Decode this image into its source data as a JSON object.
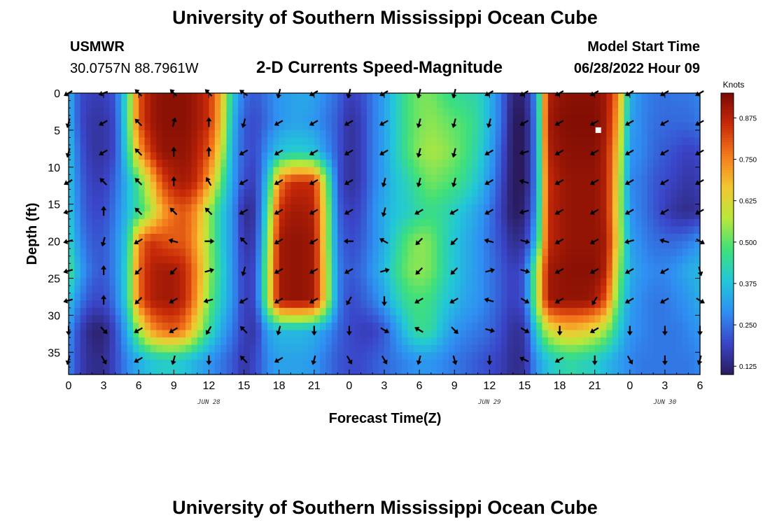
{
  "header": {
    "title": "University of Southern Mississippi Ocean Cube",
    "station": "USMWR",
    "coords": "30.0757N  88.7961W",
    "subtitle": "2-D Currents Speed-Magnitude",
    "model_label": "Model Start Time",
    "model_time": "06/28/2022 Hour 09",
    "bottom_title": "University of Southern Mississippi Ocean Cube"
  },
  "colors": {
    "scale": [
      "#2a1b5e",
      "#3a45c8",
      "#2f8ff2",
      "#22c7d8",
      "#3fe07a",
      "#b9e83a",
      "#f3c632",
      "#f47a1c",
      "#c82a08",
      "#7a0a04"
    ]
  },
  "chart_data": {
    "type": "heatmap",
    "title": "2-D Currents Speed-Magnitude",
    "xlabel": "Forecast Time(Z)",
    "ylabel": "Depth (ft)",
    "x_range_hours": [
      0,
      54
    ],
    "y_range_ft": [
      0,
      38
    ],
    "x_ticks": [
      {
        "h": 0,
        "label": "0"
      },
      {
        "h": 3,
        "label": "3"
      },
      {
        "h": 6,
        "label": "6"
      },
      {
        "h": 9,
        "label": "9"
      },
      {
        "h": 12,
        "label": "12"
      },
      {
        "h": 15,
        "label": "15"
      },
      {
        "h": 18,
        "label": "18"
      },
      {
        "h": 21,
        "label": "21"
      },
      {
        "h": 24,
        "label": "0"
      },
      {
        "h": 27,
        "label": "3"
      },
      {
        "h": 30,
        "label": "6"
      },
      {
        "h": 33,
        "label": "9"
      },
      {
        "h": 36,
        "label": "12"
      },
      {
        "h": 39,
        "label": "15"
      },
      {
        "h": 42,
        "label": "18"
      },
      {
        "h": 45,
        "label": "21"
      },
      {
        "h": 48,
        "label": "0"
      },
      {
        "h": 51,
        "label": "3"
      },
      {
        "h": 54,
        "label": "6"
      }
    ],
    "y_ticks": [
      {
        "v": 0,
        "label": "0"
      },
      {
        "v": 5,
        "label": "5"
      },
      {
        "v": 10,
        "label": "10"
      },
      {
        "v": 15,
        "label": "15"
      },
      {
        "v": 20,
        "label": "20"
      },
      {
        "v": 25,
        "label": "25"
      },
      {
        "v": 30,
        "label": "30"
      },
      {
        "v": 35,
        "label": "35"
      }
    ],
    "date_labels": [
      {
        "h": 12,
        "label": "JUN 28"
      },
      {
        "h": 36,
        "label": "JUN 29"
      },
      {
        "h": 51,
        "label": "JUN 30"
      }
    ],
    "colorbar": {
      "label": "Knots",
      "min": 0.1,
      "max": 0.95,
      "ticks": [
        {
          "v": 0.125,
          "label": "0.125"
        },
        {
          "v": 0.25,
          "label": "0.250"
        },
        {
          "v": 0.375,
          "label": "0.375"
        },
        {
          "v": 0.5,
          "label": "0.500"
        },
        {
          "v": 0.625,
          "label": "0.625"
        },
        {
          "v": 0.75,
          "label": "0.750"
        },
        {
          "v": 0.875,
          "label": "0.875"
        }
      ]
    },
    "speed_hours": [
      0,
      1,
      2,
      3,
      4,
      5,
      6,
      7,
      8,
      9,
      10,
      11,
      12,
      13,
      14,
      15,
      16,
      17,
      18,
      19,
      20,
      21,
      22,
      23,
      24,
      25,
      26,
      27,
      28,
      29,
      30,
      31,
      32,
      33,
      34,
      35,
      36,
      37,
      38,
      39,
      40,
      41,
      42,
      43,
      44,
      45,
      46,
      47,
      48,
      49,
      50,
      51,
      52,
      53,
      54
    ],
    "speed_depths": [
      0,
      4,
      8,
      12,
      16,
      20,
      24,
      28,
      32,
      36
    ],
    "speed": [
      [
        0.35,
        0.2,
        0.18,
        0.18,
        0.22,
        0.45,
        0.8,
        0.9,
        0.93,
        0.93,
        0.93,
        0.9,
        0.85,
        0.7,
        0.4,
        0.25,
        0.22,
        0.26,
        0.3,
        0.32,
        0.33,
        0.32,
        0.28,
        0.24,
        0.18,
        0.2,
        0.26,
        0.32,
        0.4,
        0.48,
        0.52,
        0.52,
        0.48,
        0.45,
        0.44,
        0.42,
        0.35,
        0.25,
        0.12,
        0.12,
        0.3,
        0.88,
        0.92,
        0.93,
        0.93,
        0.93,
        0.9,
        0.75,
        0.35,
        0.28,
        0.26,
        0.25,
        0.26,
        0.26,
        0.28
      ],
      [
        0.35,
        0.2,
        0.16,
        0.16,
        0.2,
        0.45,
        0.8,
        0.9,
        0.93,
        0.93,
        0.93,
        0.9,
        0.85,
        0.68,
        0.36,
        0.22,
        0.2,
        0.25,
        0.3,
        0.32,
        0.32,
        0.3,
        0.26,
        0.22,
        0.15,
        0.18,
        0.26,
        0.32,
        0.4,
        0.48,
        0.52,
        0.54,
        0.52,
        0.5,
        0.48,
        0.44,
        0.35,
        0.25,
        0.1,
        0.1,
        0.28,
        0.9,
        0.93,
        0.94,
        0.94,
        0.94,
        0.9,
        0.7,
        0.32,
        0.28,
        0.25,
        0.24,
        0.24,
        0.24,
        0.26
      ],
      [
        0.38,
        0.22,
        0.16,
        0.16,
        0.2,
        0.42,
        0.7,
        0.85,
        0.92,
        0.92,
        0.92,
        0.88,
        0.8,
        0.62,
        0.33,
        0.22,
        0.2,
        0.3,
        0.38,
        0.4,
        0.4,
        0.38,
        0.3,
        0.22,
        0.15,
        0.18,
        0.26,
        0.32,
        0.4,
        0.48,
        0.54,
        0.56,
        0.55,
        0.52,
        0.48,
        0.42,
        0.33,
        0.22,
        0.1,
        0.1,
        0.28,
        0.88,
        0.92,
        0.93,
        0.93,
        0.93,
        0.88,
        0.65,
        0.3,
        0.28,
        0.24,
        0.22,
        0.2,
        0.18,
        0.2
      ],
      [
        0.38,
        0.24,
        0.18,
        0.18,
        0.24,
        0.35,
        0.48,
        0.65,
        0.82,
        0.88,
        0.9,
        0.85,
        0.72,
        0.5,
        0.32,
        0.2,
        0.18,
        0.38,
        0.75,
        0.85,
        0.86,
        0.85,
        0.55,
        0.22,
        0.15,
        0.18,
        0.26,
        0.32,
        0.38,
        0.42,
        0.48,
        0.52,
        0.5,
        0.48,
        0.44,
        0.38,
        0.3,
        0.2,
        0.1,
        0.1,
        0.28,
        0.85,
        0.9,
        0.92,
        0.92,
        0.92,
        0.88,
        0.62,
        0.28,
        0.26,
        0.22,
        0.2,
        0.18,
        0.16,
        0.18
      ],
      [
        0.4,
        0.25,
        0.2,
        0.2,
        0.26,
        0.36,
        0.45,
        0.55,
        0.7,
        0.78,
        0.8,
        0.72,
        0.55,
        0.4,
        0.3,
        0.14,
        0.16,
        0.45,
        0.85,
        0.9,
        0.9,
        0.88,
        0.6,
        0.24,
        0.18,
        0.2,
        0.28,
        0.34,
        0.38,
        0.4,
        0.44,
        0.46,
        0.44,
        0.4,
        0.36,
        0.32,
        0.26,
        0.18,
        0.1,
        0.12,
        0.3,
        0.86,
        0.9,
        0.92,
        0.92,
        0.92,
        0.88,
        0.6,
        0.3,
        0.26,
        0.22,
        0.18,
        0.15,
        0.14,
        0.16
      ],
      [
        0.42,
        0.28,
        0.22,
        0.22,
        0.28,
        0.4,
        0.75,
        0.85,
        0.82,
        0.8,
        0.8,
        0.7,
        0.55,
        0.4,
        0.3,
        0.16,
        0.18,
        0.5,
        0.9,
        0.92,
        0.92,
        0.9,
        0.6,
        0.26,
        0.2,
        0.22,
        0.28,
        0.34,
        0.42,
        0.5,
        0.54,
        0.52,
        0.44,
        0.38,
        0.34,
        0.3,
        0.25,
        0.2,
        0.14,
        0.16,
        0.36,
        0.86,
        0.9,
        0.92,
        0.92,
        0.92,
        0.9,
        0.62,
        0.32,
        0.28,
        0.25,
        0.24,
        0.24,
        0.26,
        0.3
      ],
      [
        0.48,
        0.32,
        0.24,
        0.22,
        0.28,
        0.42,
        0.78,
        0.88,
        0.9,
        0.9,
        0.86,
        0.74,
        0.55,
        0.42,
        0.3,
        0.18,
        0.2,
        0.55,
        0.9,
        0.92,
        0.92,
        0.9,
        0.62,
        0.28,
        0.22,
        0.24,
        0.3,
        0.36,
        0.45,
        0.52,
        0.54,
        0.52,
        0.44,
        0.38,
        0.34,
        0.3,
        0.26,
        0.22,
        0.18,
        0.22,
        0.55,
        0.9,
        0.92,
        0.93,
        0.93,
        0.93,
        0.88,
        0.55,
        0.34,
        0.3,
        0.28,
        0.28,
        0.3,
        0.34,
        0.36
      ],
      [
        0.38,
        0.26,
        0.2,
        0.2,
        0.26,
        0.42,
        0.78,
        0.88,
        0.9,
        0.9,
        0.86,
        0.72,
        0.52,
        0.4,
        0.3,
        0.18,
        0.2,
        0.55,
        0.9,
        0.92,
        0.92,
        0.9,
        0.62,
        0.28,
        0.2,
        0.22,
        0.26,
        0.32,
        0.4,
        0.46,
        0.48,
        0.46,
        0.4,
        0.36,
        0.32,
        0.3,
        0.26,
        0.22,
        0.18,
        0.22,
        0.55,
        0.9,
        0.92,
        0.92,
        0.92,
        0.9,
        0.8,
        0.48,
        0.32,
        0.28,
        0.26,
        0.26,
        0.28,
        0.3,
        0.34
      ],
      [
        0.3,
        0.18,
        0.12,
        0.12,
        0.2,
        0.34,
        0.55,
        0.72,
        0.78,
        0.8,
        0.75,
        0.6,
        0.45,
        0.34,
        0.26,
        0.18,
        0.16,
        0.32,
        0.36,
        0.36,
        0.36,
        0.34,
        0.3,
        0.24,
        0.2,
        0.18,
        0.18,
        0.22,
        0.3,
        0.4,
        0.46,
        0.44,
        0.36,
        0.3,
        0.28,
        0.26,
        0.24,
        0.2,
        0.15,
        0.16,
        0.4,
        0.6,
        0.66,
        0.68,
        0.66,
        0.62,
        0.55,
        0.4,
        0.3,
        0.28,
        0.26,
        0.26,
        0.26,
        0.28,
        0.3
      ],
      [
        0.28,
        0.18,
        0.14,
        0.14,
        0.2,
        0.28,
        0.34,
        0.38,
        0.4,
        0.4,
        0.38,
        0.34,
        0.3,
        0.26,
        0.22,
        0.16,
        0.2,
        0.28,
        0.32,
        0.32,
        0.32,
        0.3,
        0.26,
        0.22,
        0.2,
        0.2,
        0.22,
        0.24,
        0.26,
        0.28,
        0.3,
        0.3,
        0.28,
        0.26,
        0.24,
        0.22,
        0.2,
        0.18,
        0.14,
        0.15,
        0.3,
        0.38,
        0.42,
        0.44,
        0.42,
        0.4,
        0.36,
        0.32,
        0.28,
        0.26,
        0.26,
        0.26,
        0.26,
        0.26,
        0.28
      ]
    ],
    "arrow_hours": [
      0,
      3,
      6,
      9,
      12,
      15,
      18,
      21,
      24,
      27,
      30,
      33,
      36,
      39,
      42,
      45,
      48,
      51,
      54
    ],
    "arrow_depths": [
      0,
      4,
      8,
      12,
      16,
      20,
      24,
      28,
      32,
      36
    ],
    "arrow_dir_deg": [
      [
        150,
        160,
        225,
        225,
        225,
        215,
        105,
        150,
        105,
        150,
        105,
        105,
        150,
        150,
        150,
        150,
        150,
        150,
        150
      ],
      [
        105,
        150,
        225,
        285,
        270,
        105,
        150,
        150,
        150,
        150,
        105,
        105,
        105,
        150,
        150,
        150,
        150,
        150,
        150
      ],
      [
        105,
        150,
        225,
        270,
        270,
        150,
        150,
        150,
        150,
        150,
        105,
        105,
        150,
        165,
        150,
        150,
        150,
        150,
        150
      ],
      [
        150,
        225,
        225,
        270,
        240,
        150,
        150,
        150,
        150,
        105,
        105,
        105,
        150,
        195,
        150,
        150,
        150,
        150,
        150
      ],
      [
        165,
        270,
        225,
        225,
        225,
        150,
        150,
        150,
        150,
        105,
        150,
        150,
        150,
        165,
        150,
        150,
        150,
        150,
        150
      ],
      [
        165,
        105,
        150,
        195,
        0,
        225,
        150,
        150,
        180,
        210,
        135,
        135,
        195,
        15,
        150,
        150,
        165,
        195,
        30
      ],
      [
        165,
        270,
        135,
        135,
        345,
        105,
        150,
        150,
        150,
        345,
        135,
        135,
        345,
        15,
        150,
        150,
        150,
        150,
        75
      ],
      [
        165,
        270,
        135,
        150,
        165,
        150,
        150,
        150,
        120,
        90,
        150,
        150,
        195,
        30,
        150,
        120,
        150,
        150,
        30
      ],
      [
        90,
        45,
        150,
        150,
        120,
        225,
        105,
        90,
        90,
        30,
        210,
        45,
        15,
        30,
        90,
        150,
        90,
        90,
        90
      ],
      [
        105,
        60,
        150,
        105,
        90,
        225,
        150,
        105,
        60,
        60,
        105,
        75,
        90,
        205,
        150,
        90,
        60,
        90,
        105
      ]
    ],
    "marker": {
      "h": 45.3,
      "depth": 5
    }
  }
}
